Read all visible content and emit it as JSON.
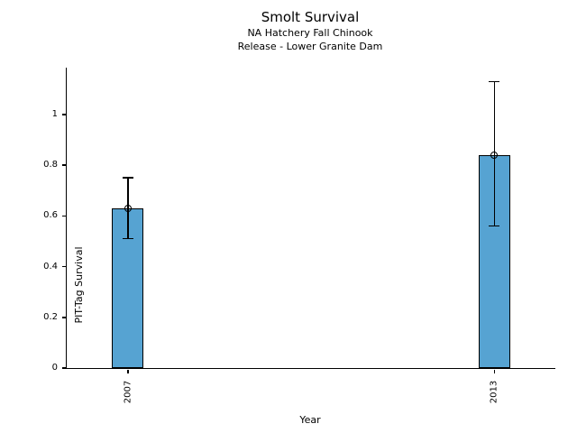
{
  "chart_data": {
    "type": "bar",
    "title": "Smolt Survival",
    "subtitle1": "NA Hatchery Fall Chinook",
    "subtitle2": "Release - Lower Granite Dam",
    "xlabel": "Year",
    "ylabel": "PIT-Tag Survival",
    "categories": [
      "2007",
      "2013"
    ],
    "x": [
      2007,
      2013
    ],
    "values": [
      0.63,
      0.84
    ],
    "error_low": [
      0.51,
      0.56
    ],
    "error_high": [
      0.75,
      1.13
    ],
    "marker": "open-circle",
    "yticks": [
      0,
      0.2,
      0.4,
      0.6,
      0.8,
      1
    ],
    "ytick_labels": [
      "0",
      "0.2",
      "0.4",
      "0.6",
      "0.8",
      "1"
    ],
    "ylim": [
      0,
      1.185
    ],
    "xlim": [
      2006,
      2014
    ],
    "grid": false,
    "legend": "none",
    "bar_color": "#56a3d2",
    "edge_color": "#000000",
    "background_color": "#ffffff"
  }
}
